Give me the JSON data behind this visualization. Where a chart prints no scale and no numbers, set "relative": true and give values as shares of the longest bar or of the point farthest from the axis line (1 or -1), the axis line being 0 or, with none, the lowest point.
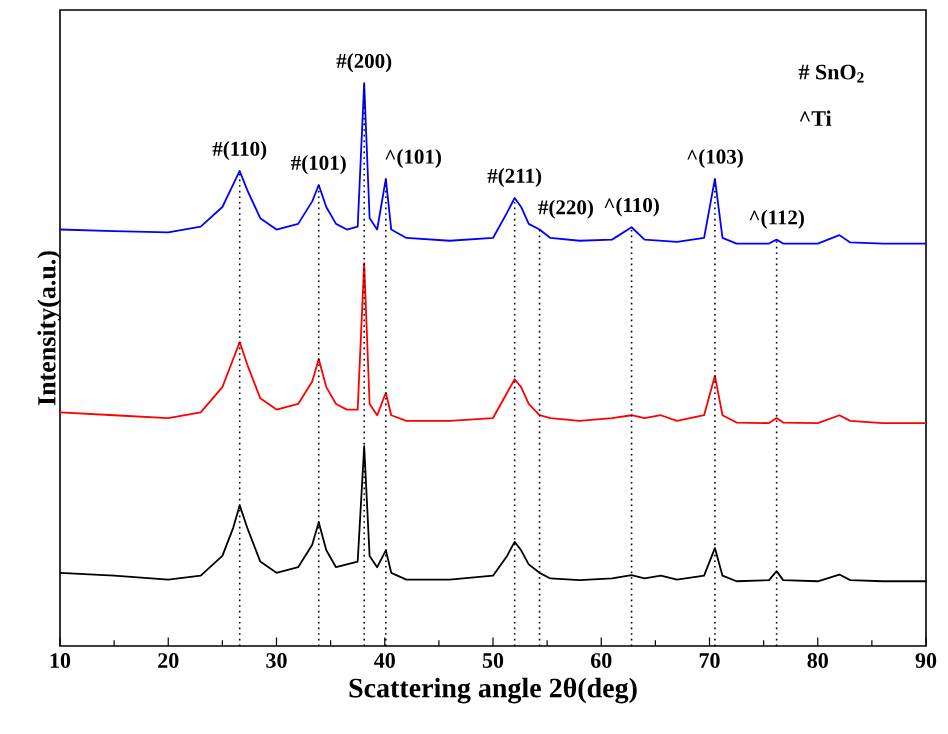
{
  "chart_data": {
    "type": "line",
    "relative": true,
    "xlabel": "Scattering angle 2θ(deg)",
    "ylabel": "Intensity(a.u.)",
    "xlim": [
      10,
      90
    ],
    "xticks": [
      10,
      20,
      30,
      40,
      50,
      60,
      70,
      80,
      90
    ],
    "grid": false,
    "marker": "none",
    "line_style": "solid",
    "annotations": [
      "# SnO$_{2}$",
      "^Ti",
      {
        "text": "#(110)",
        "x": 26.6,
        "y": 0.844
      },
      {
        "text": "#(101)",
        "x": 33.9,
        "y": 0.819
      },
      {
        "text": "#(200)",
        "x": 38.1,
        "y": 1
      },
      {
        "text": "^(101)",
        "x": 40.1,
        "y": 0.83
      },
      {
        "text": "#(211)",
        "x": 52.0,
        "y": 0.796
      },
      {
        "text": "#(220)",
        "x": 54.3,
        "y": 0.74
      },
      {
        "text": "^(110)",
        "x": 62.8,
        "y": 0.744
      },
      {
        "text": "^(103)",
        "x": 70.5,
        "y": 0.83
      },
      {
        "text": "^(112)",
        "x": 76.2,
        "y": 0.722
      }
    ],
    "x": [
      10,
      15,
      20,
      23,
      25,
      26,
      26.6,
      27.3,
      28.5,
      30,
      32,
      33.3,
      33.9,
      34.6,
      35.5,
      36.5,
      37.5,
      38.1,
      38.6,
      39.3,
      40.1,
      40.6,
      42,
      46,
      50,
      51.3,
      52,
      52.6,
      53.3,
      54.3,
      55.3,
      58,
      61,
      62.8,
      64,
      65.5,
      67,
      69.5,
      70.5,
      71.2,
      72.5,
      75.5,
      76.2,
      76.8,
      80,
      82,
      83,
      86,
      90
    ],
    "series": [
      {
        "color": "#000000",
        "values": [
          0.13,
          0.125,
          0.118,
          0.125,
          0.16,
          0.21,
          0.25,
          0.21,
          0.15,
          0.13,
          0.14,
          0.18,
          0.22,
          0.17,
          0.14,
          0.145,
          0.15,
          0.355,
          0.16,
          0.14,
          0.17,
          0.13,
          0.118,
          0.118,
          0.125,
          0.16,
          0.185,
          0.17,
          0.145,
          0.13,
          0.12,
          0.117,
          0.12,
          0.126,
          0.12,
          0.125,
          0.118,
          0.125,
          0.174,
          0.125,
          0.115,
          0.117,
          0.133,
          0.117,
          0.115,
          0.127,
          0.117,
          0.115,
          0.115
        ]
      },
      {
        "color": "#ff0000",
        "values": [
          0.415,
          0.41,
          0.405,
          0.415,
          0.46,
          0.51,
          0.54,
          0.5,
          0.44,
          0.42,
          0.43,
          0.47,
          0.51,
          0.46,
          0.43,
          0.42,
          0.42,
          0.68,
          0.43,
          0.41,
          0.45,
          0.41,
          0.4,
          0.4,
          0.405,
          0.45,
          0.474,
          0.46,
          0.43,
          0.41,
          0.405,
          0.4,
          0.405,
          0.41,
          0.405,
          0.41,
          0.4,
          0.41,
          0.48,
          0.41,
          0.397,
          0.396,
          0.405,
          0.397,
          0.396,
          0.41,
          0.4,
          0.396,
          0.396
        ]
      },
      {
        "color": "#0000ff",
        "values": [
          0.74,
          0.737,
          0.735,
          0.745,
          0.78,
          0.82,
          0.844,
          0.81,
          0.76,
          0.74,
          0.75,
          0.79,
          0.819,
          0.78,
          0.75,
          0.74,
          0.745,
          1,
          0.76,
          0.74,
          0.83,
          0.74,
          0.725,
          0.72,
          0.725,
          0.77,
          0.796,
          0.78,
          0.75,
          0.74,
          0.725,
          0.72,
          0.722,
          0.744,
          0.722,
          0.72,
          0.718,
          0.725,
          0.83,
          0.725,
          0.715,
          0.715,
          0.722,
          0.715,
          0.715,
          0.73,
          0.717,
          0.715,
          0.715
        ]
      }
    ],
    "ref_lines": [
      {
        "axis": "x",
        "value": 26.6,
        "color": "#000000",
        "line_style": "dotted"
      },
      {
        "axis": "x",
        "value": 33.9,
        "color": "#000000",
        "line_style": "dotted"
      },
      {
        "axis": "x",
        "value": 38.1,
        "color": "#000000",
        "line_style": "dotted"
      },
      {
        "axis": "x",
        "value": 40.1,
        "color": "#000000",
        "line_style": "dotted"
      },
      {
        "axis": "x",
        "value": 52.0,
        "color": "#000000",
        "line_style": "dotted"
      },
      {
        "axis": "x",
        "value": 54.3,
        "color": "#000000",
        "line_style": "dotted"
      },
      {
        "axis": "x",
        "value": 62.8,
        "color": "#000000",
        "line_style": "dotted"
      },
      {
        "axis": "x",
        "value": 70.5,
        "color": "#000000",
        "line_style": "dotted"
      },
      {
        "axis": "x",
        "value": 76.2,
        "color": "#000000",
        "line_style": "dotted"
      }
    ]
  }
}
